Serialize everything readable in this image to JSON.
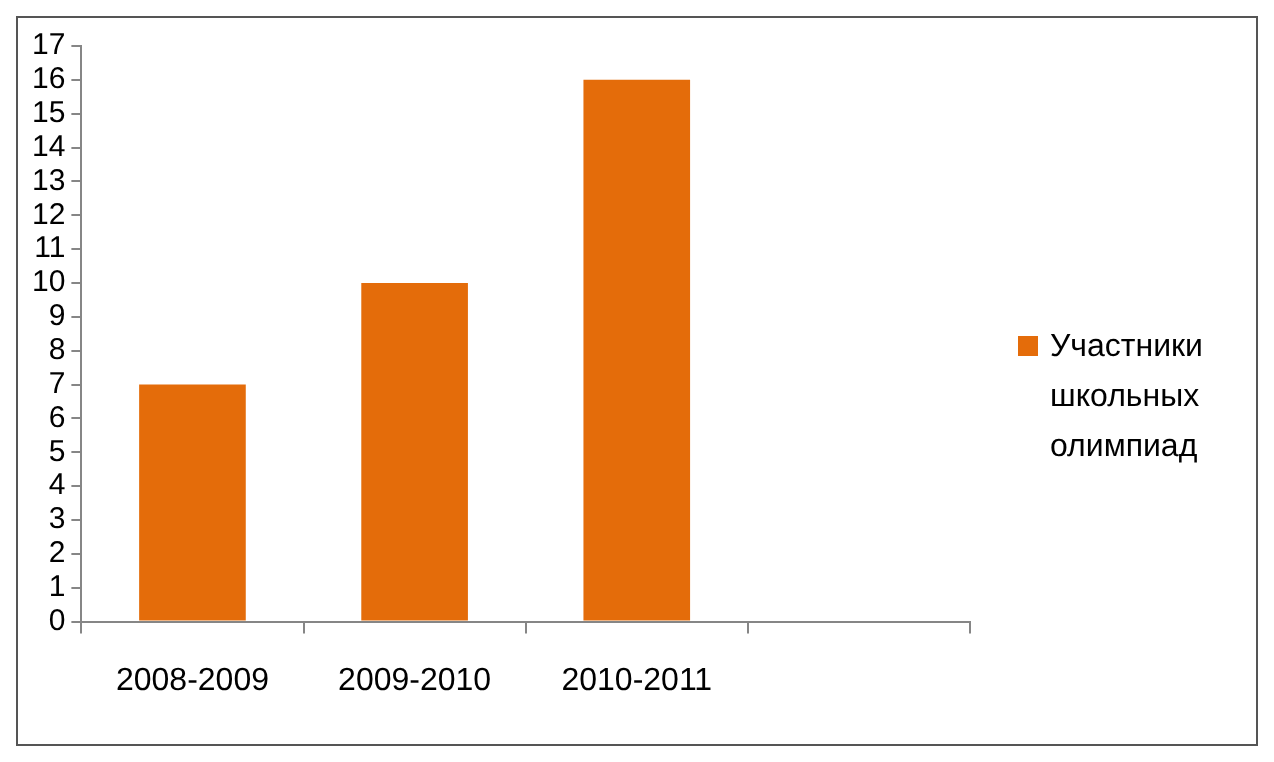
{
  "chart_data": {
    "type": "bar",
    "categories": [
      "2008-2009",
      "2009-2010",
      "2010-2011",
      null
    ],
    "series": [
      {
        "name": "Участники школьных олимпиад",
        "color": "#e46c0a",
        "values": [
          7,
          10,
          16,
          null
        ]
      }
    ],
    "ylim": [
      0,
      17
    ],
    "yticks": [
      0,
      1,
      2,
      3,
      4,
      5,
      6,
      7,
      8,
      9,
      10,
      11,
      12,
      13,
      14,
      15,
      16,
      17
    ],
    "grid": false,
    "legend": "right"
  }
}
